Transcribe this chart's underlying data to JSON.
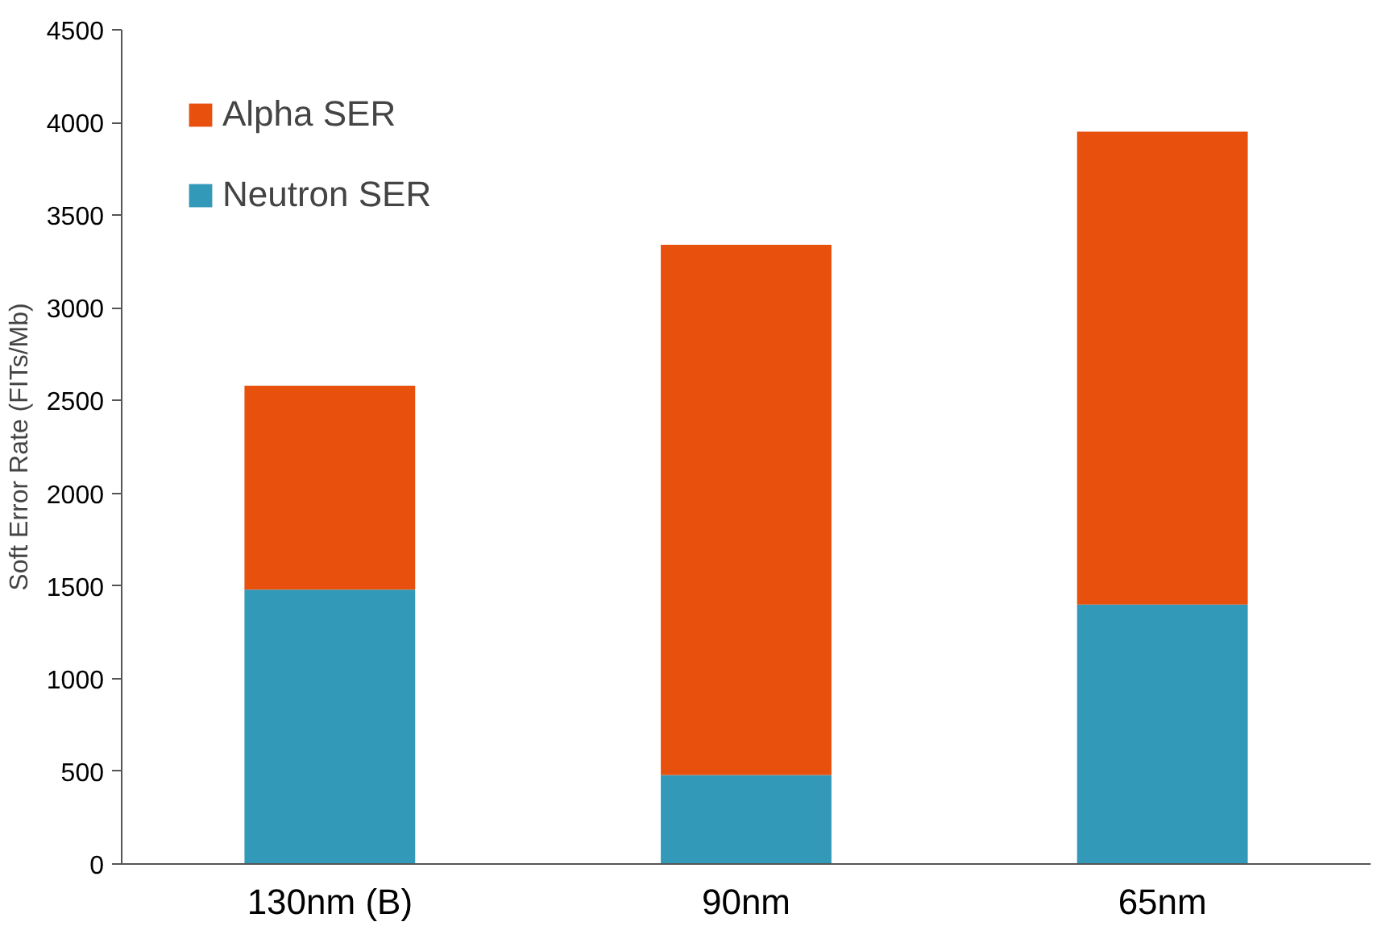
{
  "chart_data": {
    "type": "bar",
    "stacked": true,
    "ylabel": "Soft Error Rate (FITs/Mb)",
    "categories": [
      "130nm (B)",
      "90nm",
      "65nm"
    ],
    "series": [
      {
        "name": "Neutron SER",
        "color": "#3399b8",
        "values": [
          1480,
          480,
          1400
        ]
      },
      {
        "name": "Alpha SER",
        "color": "#e8500e",
        "values": [
          1100,
          2860,
          2550
        ]
      }
    ],
    "ylim": [
      0,
      4500
    ],
    "yticks": [
      0,
      500,
      1000,
      1500,
      2000,
      2500,
      3000,
      3500,
      4000,
      4500
    ],
    "grid": false,
    "legend": "top left"
  }
}
